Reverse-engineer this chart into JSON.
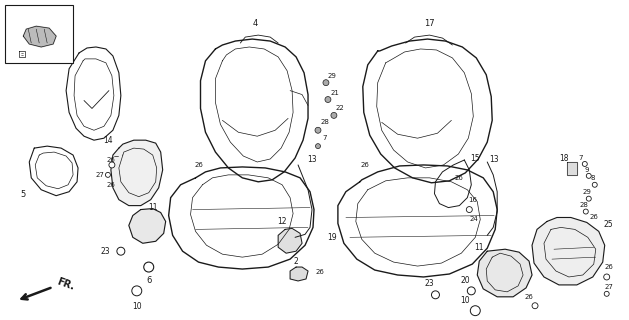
{
  "bg_color": "#ffffff",
  "line_color": "#1a1a1a",
  "figsize": [
    6.29,
    3.2
  ],
  "dpi": 100
}
